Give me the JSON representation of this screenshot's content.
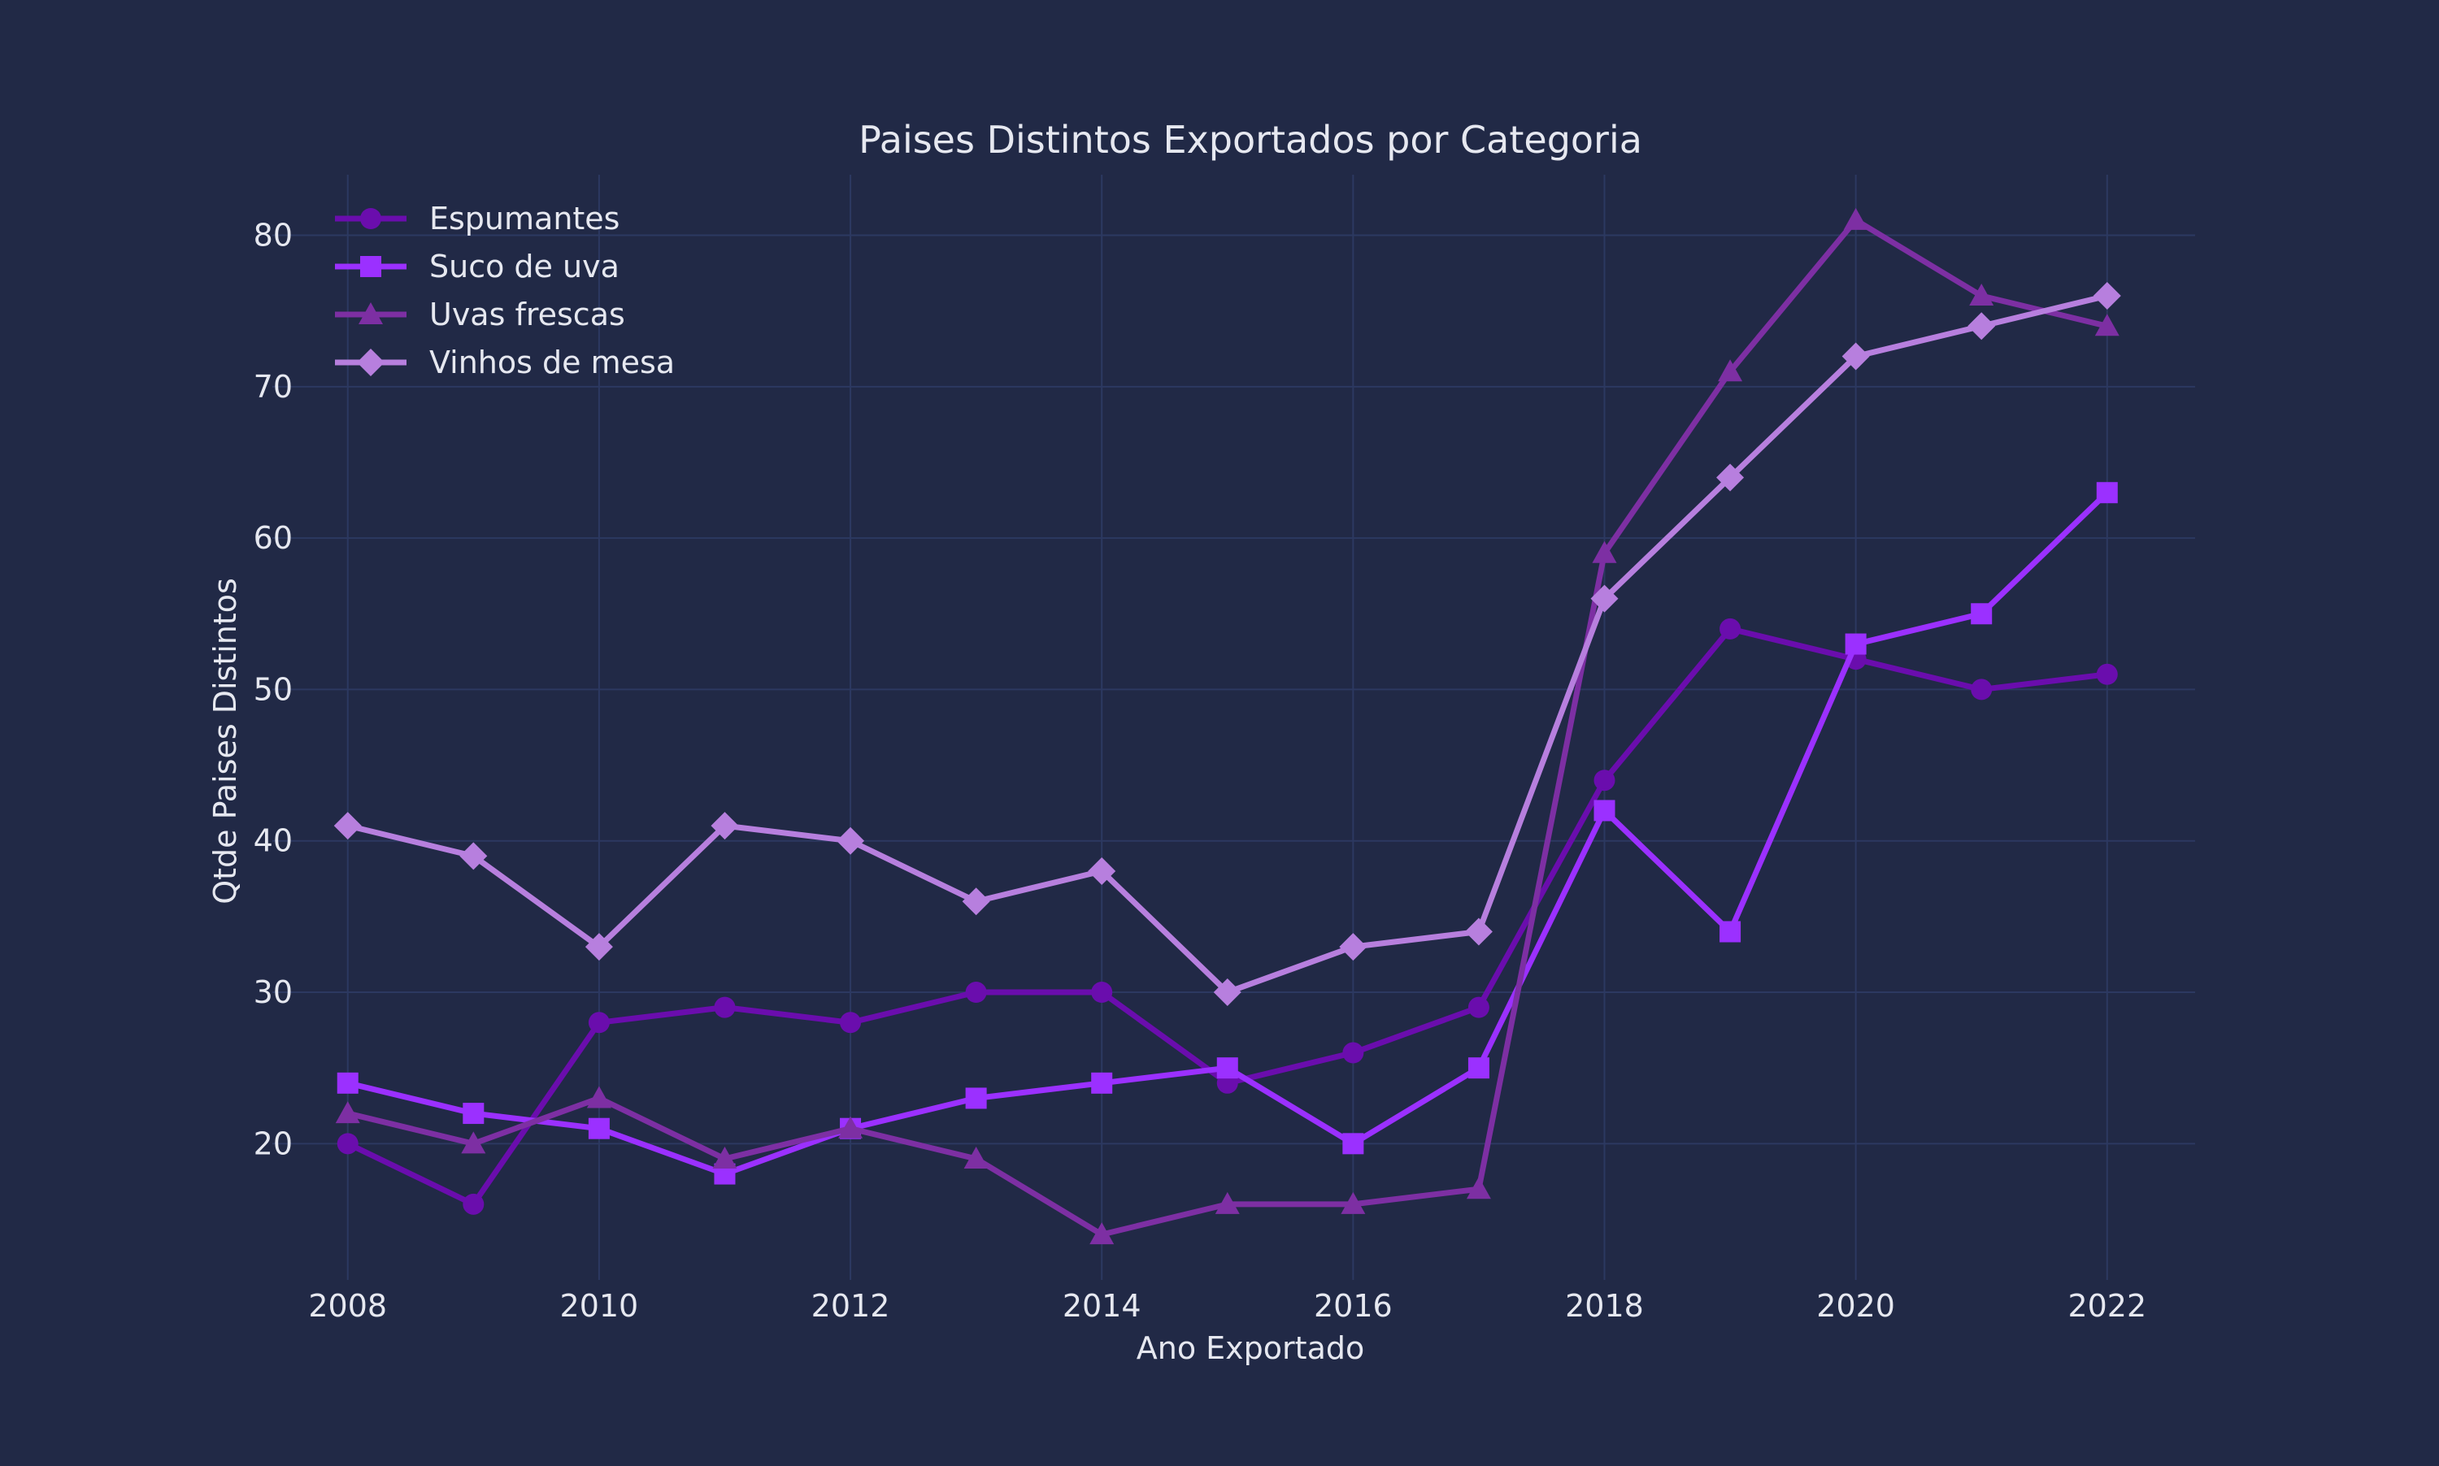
{
  "chart_data": {
    "type": "line",
    "title": "Paises Distintos Exportados por Categoria",
    "xlabel": "Ano Exportado",
    "ylabel": "Qtde Paises Distintos",
    "x": [
      2008,
      2009,
      2010,
      2011,
      2012,
      2013,
      2014,
      2015,
      2016,
      2017,
      2018,
      2019,
      2020,
      2021,
      2022
    ],
    "x_ticks": [
      "2008",
      "2010",
      "2012",
      "2014",
      "2016",
      "2018",
      "2020",
      "2022"
    ],
    "y_ticks": [
      "20",
      "30",
      "40",
      "50",
      "60",
      "70",
      "80"
    ],
    "xlim": [
      2007.4,
      2022.7
    ],
    "ylim": [
      11,
      84
    ],
    "grid": true,
    "legend_position": "top-left",
    "series": [
      {
        "name": "Espumantes",
        "marker": "circle",
        "color": "#6a0dad",
        "values": [
          20,
          16,
          28,
          29,
          28,
          30,
          30,
          24,
          26,
          29,
          44,
          54,
          52,
          50,
          51
        ]
      },
      {
        "name": "Suco de uva",
        "marker": "square",
        "color": "#9b30ff",
        "values": [
          24,
          22,
          21,
          18,
          21,
          23,
          24,
          25,
          20,
          25,
          42,
          34,
          53,
          55,
          63
        ]
      },
      {
        "name": "Uvas frescas",
        "marker": "triangle",
        "color": "#7d2fa3",
        "values": [
          22,
          20,
          23,
          19,
          21,
          19,
          14,
          16,
          16,
          17,
          59,
          71,
          81,
          76,
          74
        ]
      },
      {
        "name": "Vinhos de mesa",
        "marker": "diamond",
        "color": "#b77fde",
        "values": [
          41,
          39,
          33,
          41,
          40,
          36,
          38,
          30,
          33,
          34,
          56,
          64,
          72,
          74,
          76
        ]
      }
    ]
  }
}
